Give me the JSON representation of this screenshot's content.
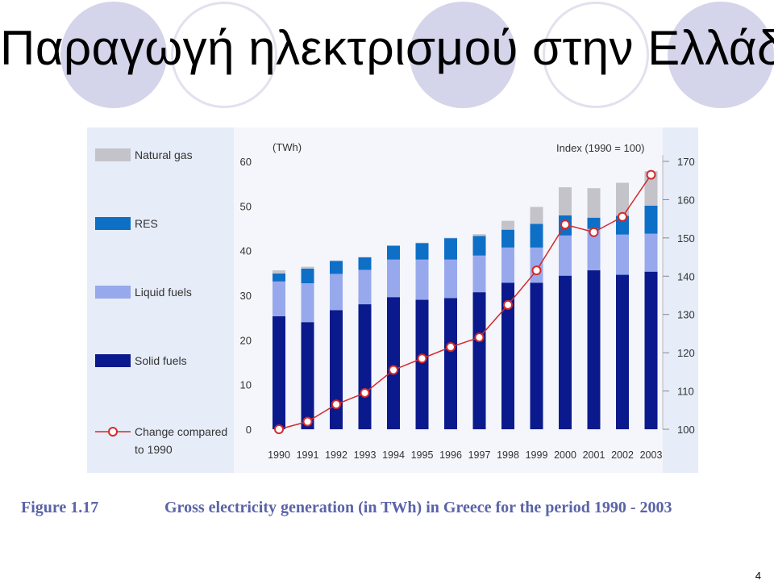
{
  "slide": {
    "title": "Παραγωγή ηλεκτρισμού στην Ελλάδα",
    "page_number": "4"
  },
  "figure": {
    "label": "Figure 1.17",
    "caption": "Gross electricity generation (in TWh) in Greece for the period 1990 - 2003"
  },
  "colors": {
    "natural_gas": "#c3c3c9",
    "res": "#0e6fc7",
    "liquid_fuels": "#97a9ec",
    "solid_fuels": "#0a1a8c",
    "index_line": "#d42a2a",
    "panel": "#e6ecf8"
  },
  "chart_data": {
    "type": "bar",
    "stacked": true,
    "categories": [
      "1990",
      "1991",
      "1992",
      "1993",
      "1994",
      "1995",
      "1996",
      "1997",
      "1998",
      "1999",
      "2000",
      "2001",
      "2002",
      "2003"
    ],
    "left_axis": {
      "unit": "(TWh)",
      "ylim": [
        0,
        60
      ],
      "ticks": [
        "0",
        "10",
        "20",
        "30",
        "40",
        "50",
        "60"
      ]
    },
    "right_axis": {
      "title": "Index (1990 = 100)",
      "ylim": [
        100,
        170
      ],
      "ticks": [
        "100",
        "110",
        "120",
        "130",
        "140",
        "150",
        "160",
        "170"
      ]
    },
    "legend_position": "left",
    "series": [
      {
        "name": "Solid fuels",
        "key": "solid_fuels",
        "values": [
          25.3,
          24.0,
          26.7,
          28.0,
          29.6,
          29.0,
          29.4,
          30.7,
          32.8,
          32.8,
          34.4,
          35.6,
          34.6,
          35.3
        ]
      },
      {
        "name": "Liquid fuels",
        "key": "liquid_fuels",
        "values": [
          7.8,
          8.7,
          8.1,
          7.7,
          8.4,
          9.0,
          8.6,
          8.2,
          7.9,
          7.9,
          9.0,
          9.3,
          9.0,
          8.5
        ]
      },
      {
        "name": "RES",
        "key": "res",
        "values": [
          1.8,
          3.3,
          2.9,
          2.8,
          3.1,
          3.7,
          4.8,
          4.4,
          4.0,
          5.3,
          4.5,
          2.5,
          4.2,
          6.3
        ]
      },
      {
        "name": "Natural gas",
        "key": "natural_gas",
        "values": [
          0.7,
          0.4,
          0.1,
          0.1,
          0.1,
          0.1,
          0.1,
          0.4,
          2.0,
          3.8,
          6.3,
          6.6,
          7.4,
          7.7
        ]
      }
    ],
    "line_series": {
      "name": "Change compared to 1990",
      "axis": "right",
      "values": [
        100,
        102,
        106.5,
        109.5,
        115.5,
        118.5,
        121.5,
        124,
        132.5,
        141.5,
        153.5,
        151.5,
        155.5,
        166.5
      ]
    }
  }
}
